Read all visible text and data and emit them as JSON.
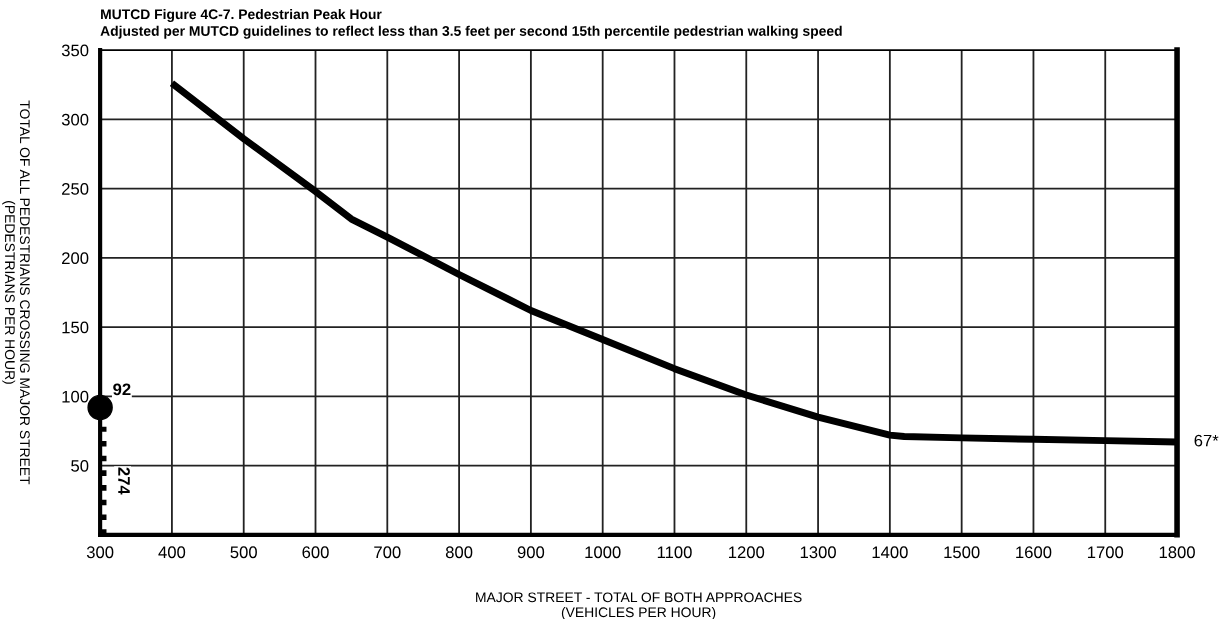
{
  "chart_data": {
    "type": "line",
    "title": "MUTCD Figure 4C-7. Pedestrian Peak Hour",
    "subtitle": "Adjusted per MUTCD guidelines to reflect less than 3.5 feet per second 15th percentile pedestrian walking speed",
    "xlabel": "MAJOR STREET - TOTAL OF BOTH APPROACHES\n(VEHICLES PER HOUR)",
    "ylabel": "TOTAL OF ALL PEDESTRIANS CROSSING MAJOR STREET\n(PEDESTRIANS PER HOUR)",
    "series": [
      {
        "color": "#000000",
        "x": [
          400,
          500,
          600,
          650,
          700,
          800,
          900,
          1000,
          1100,
          1200,
          1300,
          1400,
          1420,
          1500,
          1600,
          1700,
          1800
        ],
        "values": [
          326,
          286,
          248,
          228,
          215,
          188,
          162,
          141,
          120,
          101,
          85,
          72,
          71,
          70,
          69,
          68,
          67
        ],
        "value_labels": [
          null,
          null,
          null,
          null,
          null,
          null,
          null,
          null,
          null,
          null,
          null,
          null,
          null,
          null,
          null,
          null,
          "67*"
        ]
      },
      {
        "type": "scatter",
        "color": "#000000",
        "x": [
          300
        ],
        "values": [
          92
        ],
        "marker": "circle",
        "value_labels": [
          "92"
        ]
      },
      {
        "name": "274",
        "color": "#000000",
        "x": [
          305,
          305
        ],
        "values": [
          0,
          78
        ],
        "line_style": "dotted"
      }
    ],
    "xlim": [
      300,
      1800
    ],
    "ylim": [
      0,
      350
    ],
    "xticks": [
      300,
      400,
      500,
      600,
      700,
      800,
      900,
      1000,
      1100,
      1200,
      1300,
      1400,
      1500,
      1600,
      1700,
      1800
    ],
    "yticks": [
      50,
      100,
      150,
      200,
      250,
      300,
      350
    ],
    "grid": true
  }
}
